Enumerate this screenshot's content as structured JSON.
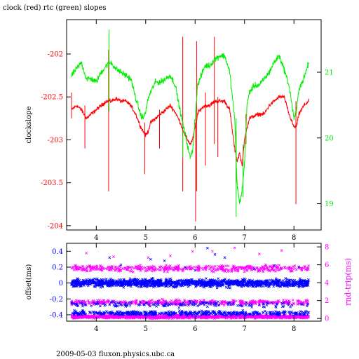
{
  "title": "clock (red) rtc (green) slopes",
  "footer": "2009-05-03 fluxon.physics.ubc.ca",
  "colors": {
    "clock": "#ff0000",
    "rtc": "#00ee00",
    "offset": "#0000ff",
    "rndtrip": "#ff00ff",
    "frame": "#000000",
    "background": "#ffffff"
  },
  "chart_data": [
    {
      "type": "line",
      "title": "clock (red) rtc (green) slopes",
      "ylabel": "clockslope",
      "y2label": "",
      "xlim": [
        3.4,
        8.55
      ],
      "ylim": [
        -204.05,
        -201.6
      ],
      "y2lim": [
        18.6,
        21.8
      ],
      "xticks": [
        4,
        5,
        6,
        7,
        8
      ],
      "xtick_labels": [
        "4",
        "5",
        "6",
        "7",
        "8"
      ],
      "yticks": [
        -202,
        -202.5,
        -203,
        -203.5,
        -204
      ],
      "ytick_labels": [
        "-202",
        "-202.5",
        "-203",
        "-203.5",
        "-204"
      ],
      "y2ticks": [
        21,
        20,
        19
      ],
      "y2tick_labels": [
        "21",
        "20",
        "19"
      ],
      "grid": false,
      "series": [
        {
          "name": "clock",
          "axis": "left",
          "x": [
            3.5,
            3.6,
            3.7,
            3.8,
            3.9,
            4.0,
            4.1,
            4.2,
            4.3,
            4.4,
            4.5,
            4.6,
            4.7,
            4.8,
            4.9,
            4.95,
            5.0,
            5.05,
            5.1,
            5.2,
            5.3,
            5.4,
            5.5,
            5.6,
            5.7,
            5.8,
            5.9,
            5.95,
            6.0,
            6.05,
            6.1,
            6.2,
            6.3,
            6.4,
            6.5,
            6.6,
            6.7,
            6.8,
            6.85,
            6.9,
            6.95,
            7.0,
            7.05,
            7.1,
            7.2,
            7.3,
            7.4,
            7.5,
            7.6,
            7.7,
            7.8,
            7.9,
            8.0,
            8.05,
            8.1,
            8.2,
            8.3
          ],
          "values": [
            -202.65,
            -202.6,
            -202.65,
            -202.75,
            -202.7,
            -202.65,
            -202.6,
            -202.55,
            -202.55,
            -202.52,
            -202.55,
            -202.55,
            -202.6,
            -202.7,
            -202.85,
            -202.9,
            -202.95,
            -202.9,
            -202.8,
            -202.75,
            -202.7,
            -202.65,
            -202.6,
            -202.68,
            -202.8,
            -202.95,
            -203.05,
            -203.0,
            -202.85,
            -202.7,
            -202.65,
            -202.6,
            -202.6,
            -202.55,
            -202.55,
            -202.55,
            -202.65,
            -203.1,
            -203.25,
            -203.15,
            -203.3,
            -203.0,
            -202.85,
            -202.75,
            -202.72,
            -202.7,
            -202.7,
            -202.6,
            -202.55,
            -202.5,
            -202.5,
            -202.7,
            -202.85,
            -202.85,
            -202.7,
            -202.6,
            -202.55
          ]
        },
        {
          "name": "rtc",
          "axis": "right",
          "x": [
            3.5,
            3.6,
            3.7,
            3.8,
            3.9,
            4.0,
            4.1,
            4.2,
            4.3,
            4.4,
            4.5,
            4.6,
            4.7,
            4.8,
            4.9,
            4.95,
            5.0,
            5.05,
            5.1,
            5.2,
            5.3,
            5.4,
            5.5,
            5.6,
            5.7,
            5.8,
            5.9,
            5.95,
            6.0,
            6.05,
            6.1,
            6.2,
            6.3,
            6.4,
            6.5,
            6.6,
            6.7,
            6.8,
            6.85,
            6.9,
            6.95,
            7.0,
            7.05,
            7.1,
            7.2,
            7.3,
            7.4,
            7.5,
            7.6,
            7.7,
            7.8,
            7.9,
            8.0,
            8.05,
            8.1,
            8.2,
            8.3
          ],
          "values": [
            20.95,
            21.05,
            21.15,
            20.9,
            20.9,
            20.85,
            21.0,
            21.1,
            21.15,
            21.05,
            21.0,
            20.95,
            20.9,
            20.6,
            20.35,
            20.3,
            20.4,
            20.6,
            20.7,
            20.85,
            20.85,
            20.9,
            20.95,
            20.8,
            20.4,
            20.05,
            19.7,
            19.8,
            20.3,
            20.8,
            20.9,
            21.1,
            21.1,
            21.2,
            21.25,
            21.25,
            21.0,
            20.3,
            19.3,
            19.0,
            19.2,
            19.6,
            20.5,
            20.7,
            20.8,
            20.8,
            20.9,
            21.0,
            21.15,
            21.25,
            21.05,
            20.8,
            20.3,
            20.4,
            20.75,
            20.9,
            21.15
          ]
        }
      ],
      "spikes": {
        "clock": [
          {
            "x": 3.5,
            "range": [
              -202.75,
              -202.45
            ]
          },
          {
            "x": 3.77,
            "range": [
              -203.1,
              -202.6
            ]
          },
          {
            "x": 4.25,
            "range": [
              -203.6,
              -201.95
            ]
          },
          {
            "x": 4.98,
            "range": [
              -203.4,
              -202.8
            ]
          },
          {
            "x": 5.28,
            "range": [
              -203.1,
              -202.65
            ]
          },
          {
            "x": 5.75,
            "range": [
              -203.6,
              -201.8
            ]
          },
          {
            "x": 6.01,
            "range": [
              -203.95,
              -202.8
            ]
          },
          {
            "x": 6.03,
            "range": [
              -203.6,
              -201.85
            ]
          },
          {
            "x": 6.21,
            "range": [
              -203.3,
              -202.45
            ]
          },
          {
            "x": 6.39,
            "range": [
              -203.05,
              -201.8
            ]
          },
          {
            "x": 6.46,
            "range": [
              -203.2,
              -202.5
            ]
          },
          {
            "x": 6.83,
            "range": [
              -203.5,
              -202.9
            ]
          },
          {
            "x": 7.03,
            "range": [
              -203.05,
              -202.7
            ]
          },
          {
            "x": 8.04,
            "range": [
              -203.75,
              -202.55
            ]
          }
        ],
        "rtc": [
          {
            "x": 4.26,
            "range": [
              20.4,
              21.65
            ]
          },
          {
            "x": 5.75,
            "range": [
              19.7,
              20.2
            ]
          },
          {
            "x": 6.83,
            "range": [
              18.8,
              20.3
            ]
          },
          {
            "x": 6.97,
            "range": [
              19.1,
              19.9
            ]
          }
        ]
      }
    },
    {
      "type": "scatter",
      "ylabel": "offset(ms)",
      "y2label": "rnd-trip(ms)",
      "xlim": [
        3.4,
        8.55
      ],
      "ylim": [
        -0.48,
        0.5
      ],
      "y2lim": [
        -0.3,
        8.4
      ],
      "xticks": [
        4,
        5,
        6,
        7,
        8
      ],
      "xtick_labels": [
        "4",
        "5",
        "6",
        "7",
        "8"
      ],
      "yticks": [
        0.4,
        0.2,
        0,
        -0.2,
        -0.4
      ],
      "ytick_labels": [
        "0.4",
        "0.2",
        "0",
        "-0.2",
        "-0.4"
      ],
      "y2ticks": [
        8,
        6,
        4,
        2,
        0
      ],
      "y2tick_labels": [
        "8",
        "6",
        "4",
        "2",
        "0"
      ],
      "grid": false,
      "series": [
        {
          "name": "offset",
          "axis": "left",
          "marker": "x",
          "x_range": [
            3.5,
            8.3
          ],
          "bands": [
            {
              "center": 0.0,
              "spread": 0.07,
              "density": "dense"
            },
            {
              "center": -0.27,
              "spread": 0.05,
              "density": "sparse"
            },
            {
              "center": -0.38,
              "spread": 0.04,
              "density": "medium"
            }
          ],
          "outliers": [
            {
              "x": 4.27,
              "y": 0.32
            },
            {
              "x": 4.5,
              "y": 0.23
            },
            {
              "x": 5.1,
              "y": 0.3
            },
            {
              "x": 5.38,
              "y": 0.28
            },
            {
              "x": 5.8,
              "y": 0.2
            },
            {
              "x": 6.0,
              "y": 0.16
            },
            {
              "x": 6.25,
              "y": 0.44
            },
            {
              "x": 6.4,
              "y": 0.36
            },
            {
              "x": 6.6,
              "y": 0.32
            },
            {
              "x": 7.2,
              "y": 0.18
            },
            {
              "x": 7.6,
              "y": 0.22
            },
            {
              "x": 8.1,
              "y": 0.2
            }
          ]
        },
        {
          "name": "rnd-trip",
          "axis": "right",
          "marker": "x",
          "x_range": [
            3.5,
            8.3
          ],
          "bands": [
            {
              "center": 0.2,
              "spread": 0.25,
              "density": "dense"
            },
            {
              "center": 1.8,
              "spread": 0.4,
              "density": "medium"
            },
            {
              "center": 5.6,
              "spread": 0.5,
              "density": "medium"
            }
          ],
          "outliers": [
            {
              "x": 3.8,
              "y": 7.3
            },
            {
              "x": 4.35,
              "y": 6.9
            },
            {
              "x": 5.05,
              "y": 6.8
            },
            {
              "x": 5.5,
              "y": 7.0
            },
            {
              "x": 5.95,
              "y": 7.5
            },
            {
              "x": 6.35,
              "y": 7.5
            },
            {
              "x": 6.8,
              "y": 7.9
            },
            {
              "x": 7.3,
              "y": 7.2
            },
            {
              "x": 7.75,
              "y": 7.6
            }
          ]
        }
      ]
    }
  ]
}
